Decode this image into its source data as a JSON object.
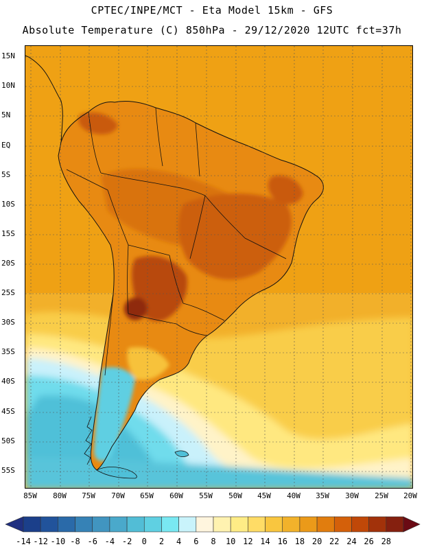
{
  "header": {
    "title_line_1": "CPTEC/INPE/MCT  -   Eta Model 15km  -  GFS",
    "title_line_2": "Absolute Temperature (C) 850hPa - 29/12/2020 12UTC fct=37h"
  },
  "map": {
    "lat_labels": [
      "15N",
      "10N",
      "5N",
      "EQ",
      "5S",
      "10S",
      "15S",
      "20S",
      "25S",
      "30S",
      "35S",
      "40S",
      "45S",
      "50S",
      "55S"
    ],
    "lon_labels": [
      "85W",
      "80W",
      "75W",
      "70W",
      "65W",
      "60W",
      "55W",
      "50W",
      "45W",
      "40W",
      "35W",
      "30W",
      "25W",
      "20W"
    ],
    "ocean_color": "#f2a60d",
    "land_color": "#e58a10"
  },
  "colorbar": {
    "labels": [
      "-14",
      "-12",
      "-10",
      "-8",
      "-6",
      "-4",
      "-2",
      "0",
      "2",
      "4",
      "6",
      "8",
      "10",
      "12",
      "14",
      "16",
      "18",
      "20",
      "22",
      "24",
      "26",
      "28"
    ],
    "colors": [
      "#1b3f8a",
      "#21539b",
      "#2a6aa9",
      "#3682b6",
      "#4195c0",
      "#4aa9cb",
      "#52bdd6",
      "#5fd0e2",
      "#79e8f2",
      "#c9f3fb",
      "#fff5de",
      "#fff2b0",
      "#ffec86",
      "#ffdc66",
      "#f9c63f",
      "#f2b22b",
      "#eb9a19",
      "#e17d0e",
      "#d4600a",
      "#c04808",
      "#a2320a",
      "#85200f"
    ],
    "under_color": "#1f2f80",
    "over_color": "#6a0a14"
  }
}
